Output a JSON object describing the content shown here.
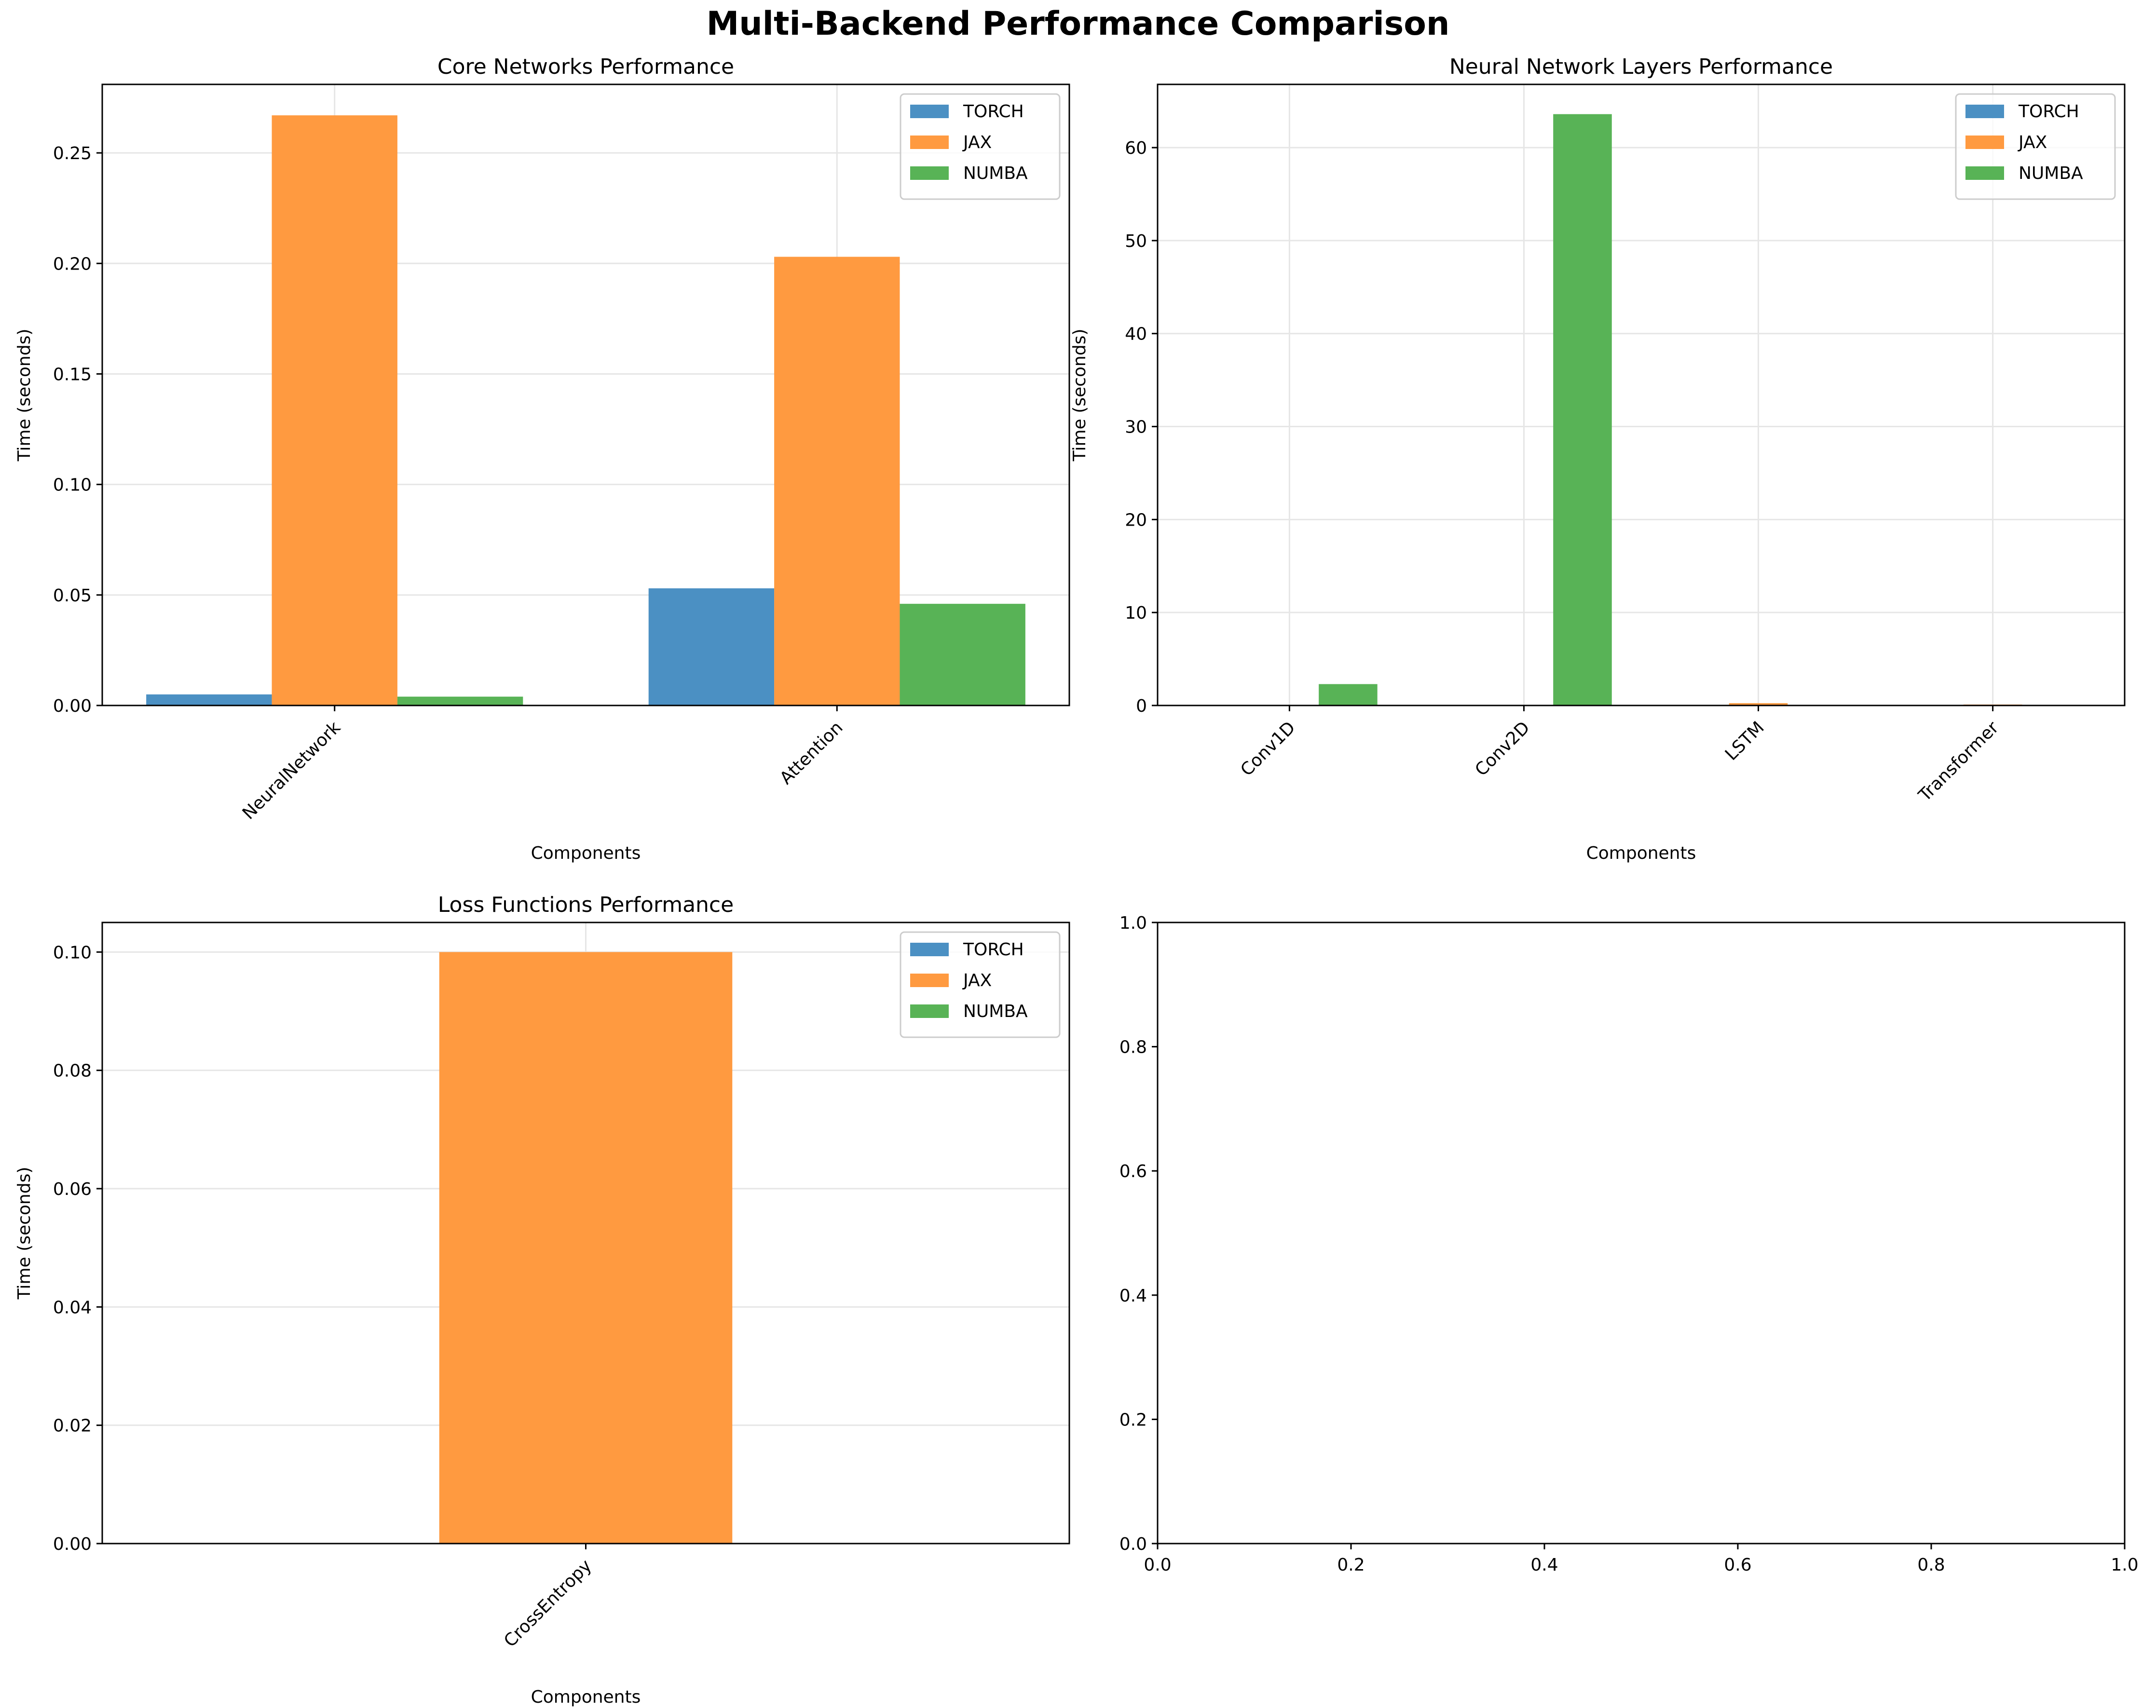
{
  "figure": {
    "title": "Multi-Backend Performance Comparison"
  },
  "chart_data": [
    {
      "type": "bar",
      "title": "Core Networks Performance",
      "xlabel": "Components",
      "ylabel": "Time (seconds)",
      "categories": [
        "NeuralNetwork",
        "Attention"
      ],
      "series": [
        {
          "name": "TORCH",
          "values": [
            0.005,
            0.053
          ]
        },
        {
          "name": "JAX",
          "values": [
            0.267,
            0.203
          ]
        },
        {
          "name": "NUMBA",
          "values": [
            0.004,
            0.046
          ]
        }
      ],
      "ylim": [
        0,
        0.281
      ],
      "yticks": [
        0.0,
        0.05,
        0.1,
        0.15,
        0.2,
        0.25
      ],
      "ytick_labels": [
        "0.00",
        "0.05",
        "0.10",
        "0.15",
        "0.20",
        "0.25"
      ],
      "colors": [
        "#4b90c3",
        "#ff9a40",
        "#58b356"
      ],
      "grid": true,
      "legend": "top-right"
    },
    {
      "type": "bar",
      "title": "Neural Network Layers Performance",
      "xlabel": "Components",
      "ylabel": "Time (seconds)",
      "categories": [
        "Conv1D",
        "Conv2D",
        "LSTM",
        "Transformer"
      ],
      "series": [
        {
          "name": "TORCH",
          "values": [
            0.02,
            0.03,
            0.05,
            0.03
          ]
        },
        {
          "name": "JAX",
          "values": [
            0.05,
            0.05,
            0.25,
            0.1
          ]
        },
        {
          "name": "NUMBA",
          "values": [
            2.3,
            63.6,
            0.02,
            0.01
          ]
        }
      ],
      "ylim": [
        0,
        66.8
      ],
      "yticks": [
        0,
        10,
        20,
        30,
        40,
        50,
        60
      ],
      "ytick_labels": [
        "0",
        "10",
        "20",
        "30",
        "40",
        "50",
        "60"
      ],
      "colors": [
        "#4b90c3",
        "#ff9a40",
        "#58b356"
      ],
      "grid": true,
      "legend": "top-right"
    },
    {
      "type": "bar",
      "title": "Loss Functions Performance",
      "xlabel": "Components",
      "ylabel": "Time (seconds)",
      "categories": [
        "CrossEntropy"
      ],
      "series": [
        {
          "name": "TORCH",
          "values": [
            0.0001
          ]
        },
        {
          "name": "JAX",
          "values": [
            0.1
          ]
        },
        {
          "name": "NUMBA",
          "values": [
            0.0001
          ]
        }
      ],
      "ylim": [
        0,
        0.105
      ],
      "yticks": [
        0.0,
        0.02,
        0.04,
        0.06,
        0.08,
        0.1
      ],
      "ytick_labels": [
        "0.00",
        "0.02",
        "0.04",
        "0.06",
        "0.08",
        "0.10"
      ],
      "colors": [
        "#4b90c3",
        "#ff9a40",
        "#58b356"
      ],
      "grid": true,
      "legend": "top-right"
    },
    {
      "type": "bar",
      "title": "",
      "xlabel": "",
      "ylabel": "",
      "categories": [],
      "series": [],
      "xlim": [
        0,
        1
      ],
      "ylim": [
        0,
        1
      ],
      "xticks": [
        0.0,
        0.2,
        0.4,
        0.6,
        0.8,
        1.0
      ],
      "xtick_labels": [
        "0.0",
        "0.2",
        "0.4",
        "0.6",
        "0.8",
        "1.0"
      ],
      "yticks": [
        0.0,
        0.2,
        0.4,
        0.6,
        0.8,
        1.0
      ],
      "ytick_labels": [
        "0.0",
        "0.2",
        "0.4",
        "0.6",
        "0.8",
        "1.0"
      ],
      "grid": false,
      "legend": "none"
    }
  ]
}
